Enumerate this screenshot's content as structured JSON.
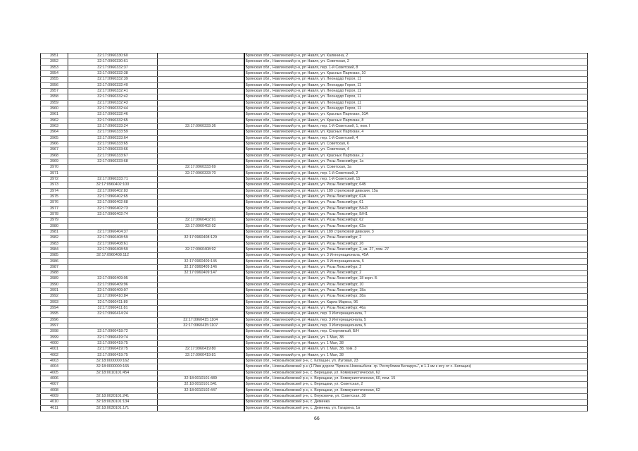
{
  "page_number": "66",
  "rows": [
    [
      "3951",
      "32:17:0960330:60",
      "",
      "Брянская обл., Навлинский р-н, рп Навля, ул. Калинина, 2"
    ],
    [
      "3952",
      "32:17:0960330:61",
      "",
      "Брянская обл., Навлинский р-н, рп Навля, ул. Советская, 2"
    ],
    [
      "3953",
      "32:17:0960332:37",
      "",
      "Брянская обл., Навлинский р-н, рп Навля, пер. 1-й Советский, 8"
    ],
    [
      "3954",
      "32:17:0960332:38",
      "",
      "Брянская обл., Навлинский р-н, рп Навля, ул. Красных Партизан, 10"
    ],
    [
      "3955",
      "32:17:0960332:39",
      "",
      "Брянская обл., Навлинский р-н, рп Навля, ул. Леонардо Героя, 11"
    ],
    [
      "3956",
      "32:17:0960332:40",
      "",
      "Брянская обл., Навлинский р-н, рп Навля, ул. Леонардо Героя, 11"
    ],
    [
      "3957",
      "32:17:0960332:41",
      "",
      "Брянская обл., Навлинский р-н, рп Навля, ул. Леонардо Героя, 11"
    ],
    [
      "3958",
      "32:17:0960332:42",
      "",
      "Брянская обл., Навлинский р-н, рп Навля, ул. Леонардо Героя, 11"
    ],
    [
      "3959",
      "32:17:0960332:43",
      "",
      "Брянская обл., Навлинский р-н, рп Навля, ул. Леонардо Героя, 11"
    ],
    [
      "3960",
      "32:17:0960332:44",
      "",
      "Брянская обл., Навлинский р-н, рп Навля, ул. Леонардо Героя, 11"
    ],
    [
      "3961",
      "32:17:0960332:46",
      "",
      "Брянская обл., Навлинский р-н, рп Навля, ул. Красных Партизан, 10А"
    ],
    [
      "3962",
      "32:17:0960332:65",
      "",
      "Брянская обл., Навлинский р-н, рп Навля, ул. Красных Партизан, 8"
    ],
    [
      "3963",
      "32:17:0960333:24",
      "32:17:0960333:36",
      "Брянская обл., Навлинский р-н, рп Навля, пер. 1-й Советский, 1, пом. I"
    ],
    [
      "3964",
      "32:17:0960333:59",
      "",
      "Брянская обл., Навлинский р-н, рп Навля, ул. Красных Партизан, 4"
    ],
    [
      "3965",
      "32:17:0960333:64",
      "",
      "Брянская обл., Навлинский р-н, рп Навля, пер. 1-й Советский, 4"
    ],
    [
      "3966",
      "32:17:0960333:65",
      "",
      "Брянская обл., Навлинский р-н, рп Навля, ул. Советская, 6"
    ],
    [
      "3967",
      "32:17:0960333:66",
      "",
      "Брянская обл., Навлинский р-н, рп Навля, ул. Советская, 4"
    ],
    [
      "3968",
      "32:17:0960333:67",
      "",
      "Брянская обл., Навлинский р-н, рп Навля, ул. Красных Партизан, 2"
    ],
    [
      "3969",
      "32:17:0960333:68",
      "",
      "Брянская обл., Навлинский р-н, рп Навля, ул. Розы Люксембург, 1а"
    ],
    [
      "3970",
      "",
      "32:17:0960333:69",
      "Брянская обл., Навлинский р-н, рп Навля, ул. Советская, 1а"
    ],
    [
      "3971",
      "",
      "32:17:0960333:70",
      "Брянская обл., Навлинский р-н, рп Навля, пер. 1-й Советский, 2"
    ],
    [
      "3972",
      "32:17:0960333:71",
      "",
      "Брянская обл., Навлинский р-н, рп Навля, пер. 1-й Советский, 15"
    ],
    [
      "3973",
      "32:17:0960402:100",
      "",
      "Брянская обл., Навлинский р-н, рп Навля, ул. Розы Люксембург, 64Б"
    ],
    [
      "3974",
      "32:17:0960402:83",
      "",
      "Брянская обл., Навлинский р-н, рп Навля, ул. 189 стрелковой дивизии, 15а"
    ],
    [
      "3975",
      "32:17:0960402:65",
      "",
      "Брянская обл., Навлинский р-н, рп Навля, ул. Розы Люксембург, 62А"
    ],
    [
      "3976",
      "32:17:0960402:68",
      "",
      "Брянская обл., Навлинский р-н, рп Навля, ул. Розы Люксембург, 61"
    ],
    [
      "3977",
      "32:17:0960402:73",
      "",
      "Брянская обл., Навлинский р-н, рп Навля, ул. Розы Люксембург, Б/Н3"
    ],
    [
      "3978",
      "32:17:0960402:74",
      "",
      "Брянская обл., Навлинский р-н, рп Навля, ул. Розы Люксембург, Б/Н1"
    ],
    [
      "3979",
      "",
      "32:17:0960402:91",
      "Брянская обл., Навлинский р-н, рп Навля, ул. Розы Люксембург, 62"
    ],
    [
      "3980",
      "",
      "32:17:0960402:92",
      "Брянская обл., Навлинский р-н, рп Навля, ул. Розы Люксембург, 62а"
    ],
    [
      "3981",
      "32:17:0960404:37",
      "",
      "Брянская обл., Навлинский р-н, рп Навля, ул. 189 стрелковой дивизии, 3"
    ],
    [
      "3982",
      "32:17:0960408:59",
      "32:17:0960408:129",
      "Брянская обл., Навлинский р-н, рп Навля, ул. Розы Люксембург, 2"
    ],
    [
      "3983",
      "32:17:0960408:61",
      "",
      "Брянская обл., Навлинский р-н, рп Навля, ул. Розы Люксембург, 2б"
    ],
    [
      "3984",
      "32:17:0960408:59",
      "32:17:0960408:92",
      "Брянская обл., Навлинский р-н, рп Навля, ул. Розы Люксембург, 2, кв. 27, пом. 27"
    ],
    [
      "3985",
      "32:17:0960408:112",
      "",
      "Брянская обл., Навлинский р-н, рп Навля, ул. 3 Интернационала, 45А"
    ],
    [
      "3986",
      "",
      "32:17:0960409:145",
      "Брянская обл., Навлинский р-н, рп Навля, ул. 3 Интернационала, 5"
    ],
    [
      "3987",
      "",
      "32:17:0960409:146",
      "Брянская обл., Навлинский р-н, рп Навля, ул. Розы Люксембург, 2"
    ],
    [
      "3988",
      "",
      "32:17:0960409:147",
      "Брянская обл., Навлинский р-н, рп Навля, ул. Розы Люксембург, 2"
    ],
    [
      "3989",
      "32:17:0960409:95",
      "",
      "Брянская обл., Навлинский р-н, рп Навля, ул. Розы Люксембург, 18 корп. Б"
    ],
    [
      "3990",
      "32:17:0960409:96",
      "",
      "Брянская обл., Навлинский р-н, рп Навля, ул. Розы Люксембург, 10"
    ],
    [
      "3991",
      "32:17:0960409:97",
      "",
      "Брянская обл., Навлинский р-н, рп Навля, ул. Розы Люксембург, 18а"
    ],
    [
      "3992",
      "32:17:0960410:84",
      "",
      "Брянская обл., Навлинский р-н, рп Навля, ул. Розы Люксембург, 38а"
    ],
    [
      "3993",
      "32:17:0960411:89",
      "",
      "Брянская обл., Навлинский р-н, рп Навля, ул. Карла Маркса, 96"
    ],
    [
      "3994",
      "32:17:0960411:81",
      "",
      "Брянская обл., Навлинский р-н, рп Навля, ул. Розы Люксембург, 46а"
    ],
    [
      "3995",
      "32:17:0960414:24",
      "",
      "Брянская обл., Навлинский р-н, рп Навля, пер. 3 Интернационала, 7"
    ],
    [
      "3996",
      "",
      "32:17:0960415:1104",
      "Брянская обл., Навлинский р-н, рп Навля, пер. 3 Интернационала, 5"
    ],
    [
      "3997",
      "",
      "32:17:0960415:1107",
      "Брянская обл., Навлинский р-н, рп Навля, пер. 3 Интернационала, 5"
    ],
    [
      "3998",
      "32:17:0960418:72",
      "",
      "Брянская обл., Навлинский р-н, рп Навля, пер. Спортивный, Б/Н"
    ],
    [
      "3999",
      "32:17:0960419:74",
      "",
      "Брянская обл., Навлинский р-н, рп Навля, ул. 1 Мая, 38"
    ],
    [
      "4000",
      "32:17:0960419:75",
      "",
      "Брянская обл., Навлинский р-н, рп Навля, ул. 1 Мая, 38"
    ],
    [
      "4001",
      "32:17:0960419:75",
      "32:17:0960419:80",
      "Брянская обл., Навлинский р-н, рп Навля, ул. 1 Мая, 38, пом. 3"
    ],
    [
      "4002",
      "32:17:0960419:75",
      "32:17:0960419:81",
      "Брянская обл., Навлинский р-н, рп Навля, ул. 1 Мая, 38"
    ],
    [
      "4003",
      "32:18:0000000:162",
      "",
      "Брянская обл., Новозыбковский р-н, с. Катащин, ул. Луговая, 23"
    ],
    [
      "4004",
      "32:18:0000000:165",
      "",
      "Брянская обл., Новозыбковский р-н (179км дороги \"Брянск-Новозыбков -гр. Республики Беларусь\", в 1.1 км к югу от с. Катащин)"
    ],
    [
      "4005",
      "32:18:0010101:454",
      "",
      "Брянская обл., Новозыбковский р-н, с. Верещаки, ул. Коммунистическая, 62"
    ],
    [
      "4006",
      "",
      "32:18:0010101:489",
      "Брянская обл., Новозыбковский р-н, с. Верещаки, ул. Коммунистическая, 60, пом. 15"
    ],
    [
      "4007",
      "",
      "32:18:0010101:541",
      "Брянская обл., Новозыбковский р-н, с. Верещаки, ул. Советская, 2"
    ],
    [
      "4008",
      "",
      "32:18:0010102:447",
      "Брянская обл., Новозыбковский р-н, с. Верещаки, ул. Коммунистическая, 62"
    ],
    [
      "4009",
      "32:18:0020101:241",
      "",
      "Брянская обл., Новозыбковский р-н, с. Внуковичи, ул. Советская, 38"
    ],
    [
      "4010",
      "32:18:0030101:134",
      "",
      "Брянская обл., Новозыбковский р-н, с. Деменка"
    ],
    [
      "4011",
      "32:18:0030101:171",
      "",
      "Брянская обл., Новозыбковский р-н, с. Деменка, ул. Гагарина, 1в"
    ]
  ]
}
